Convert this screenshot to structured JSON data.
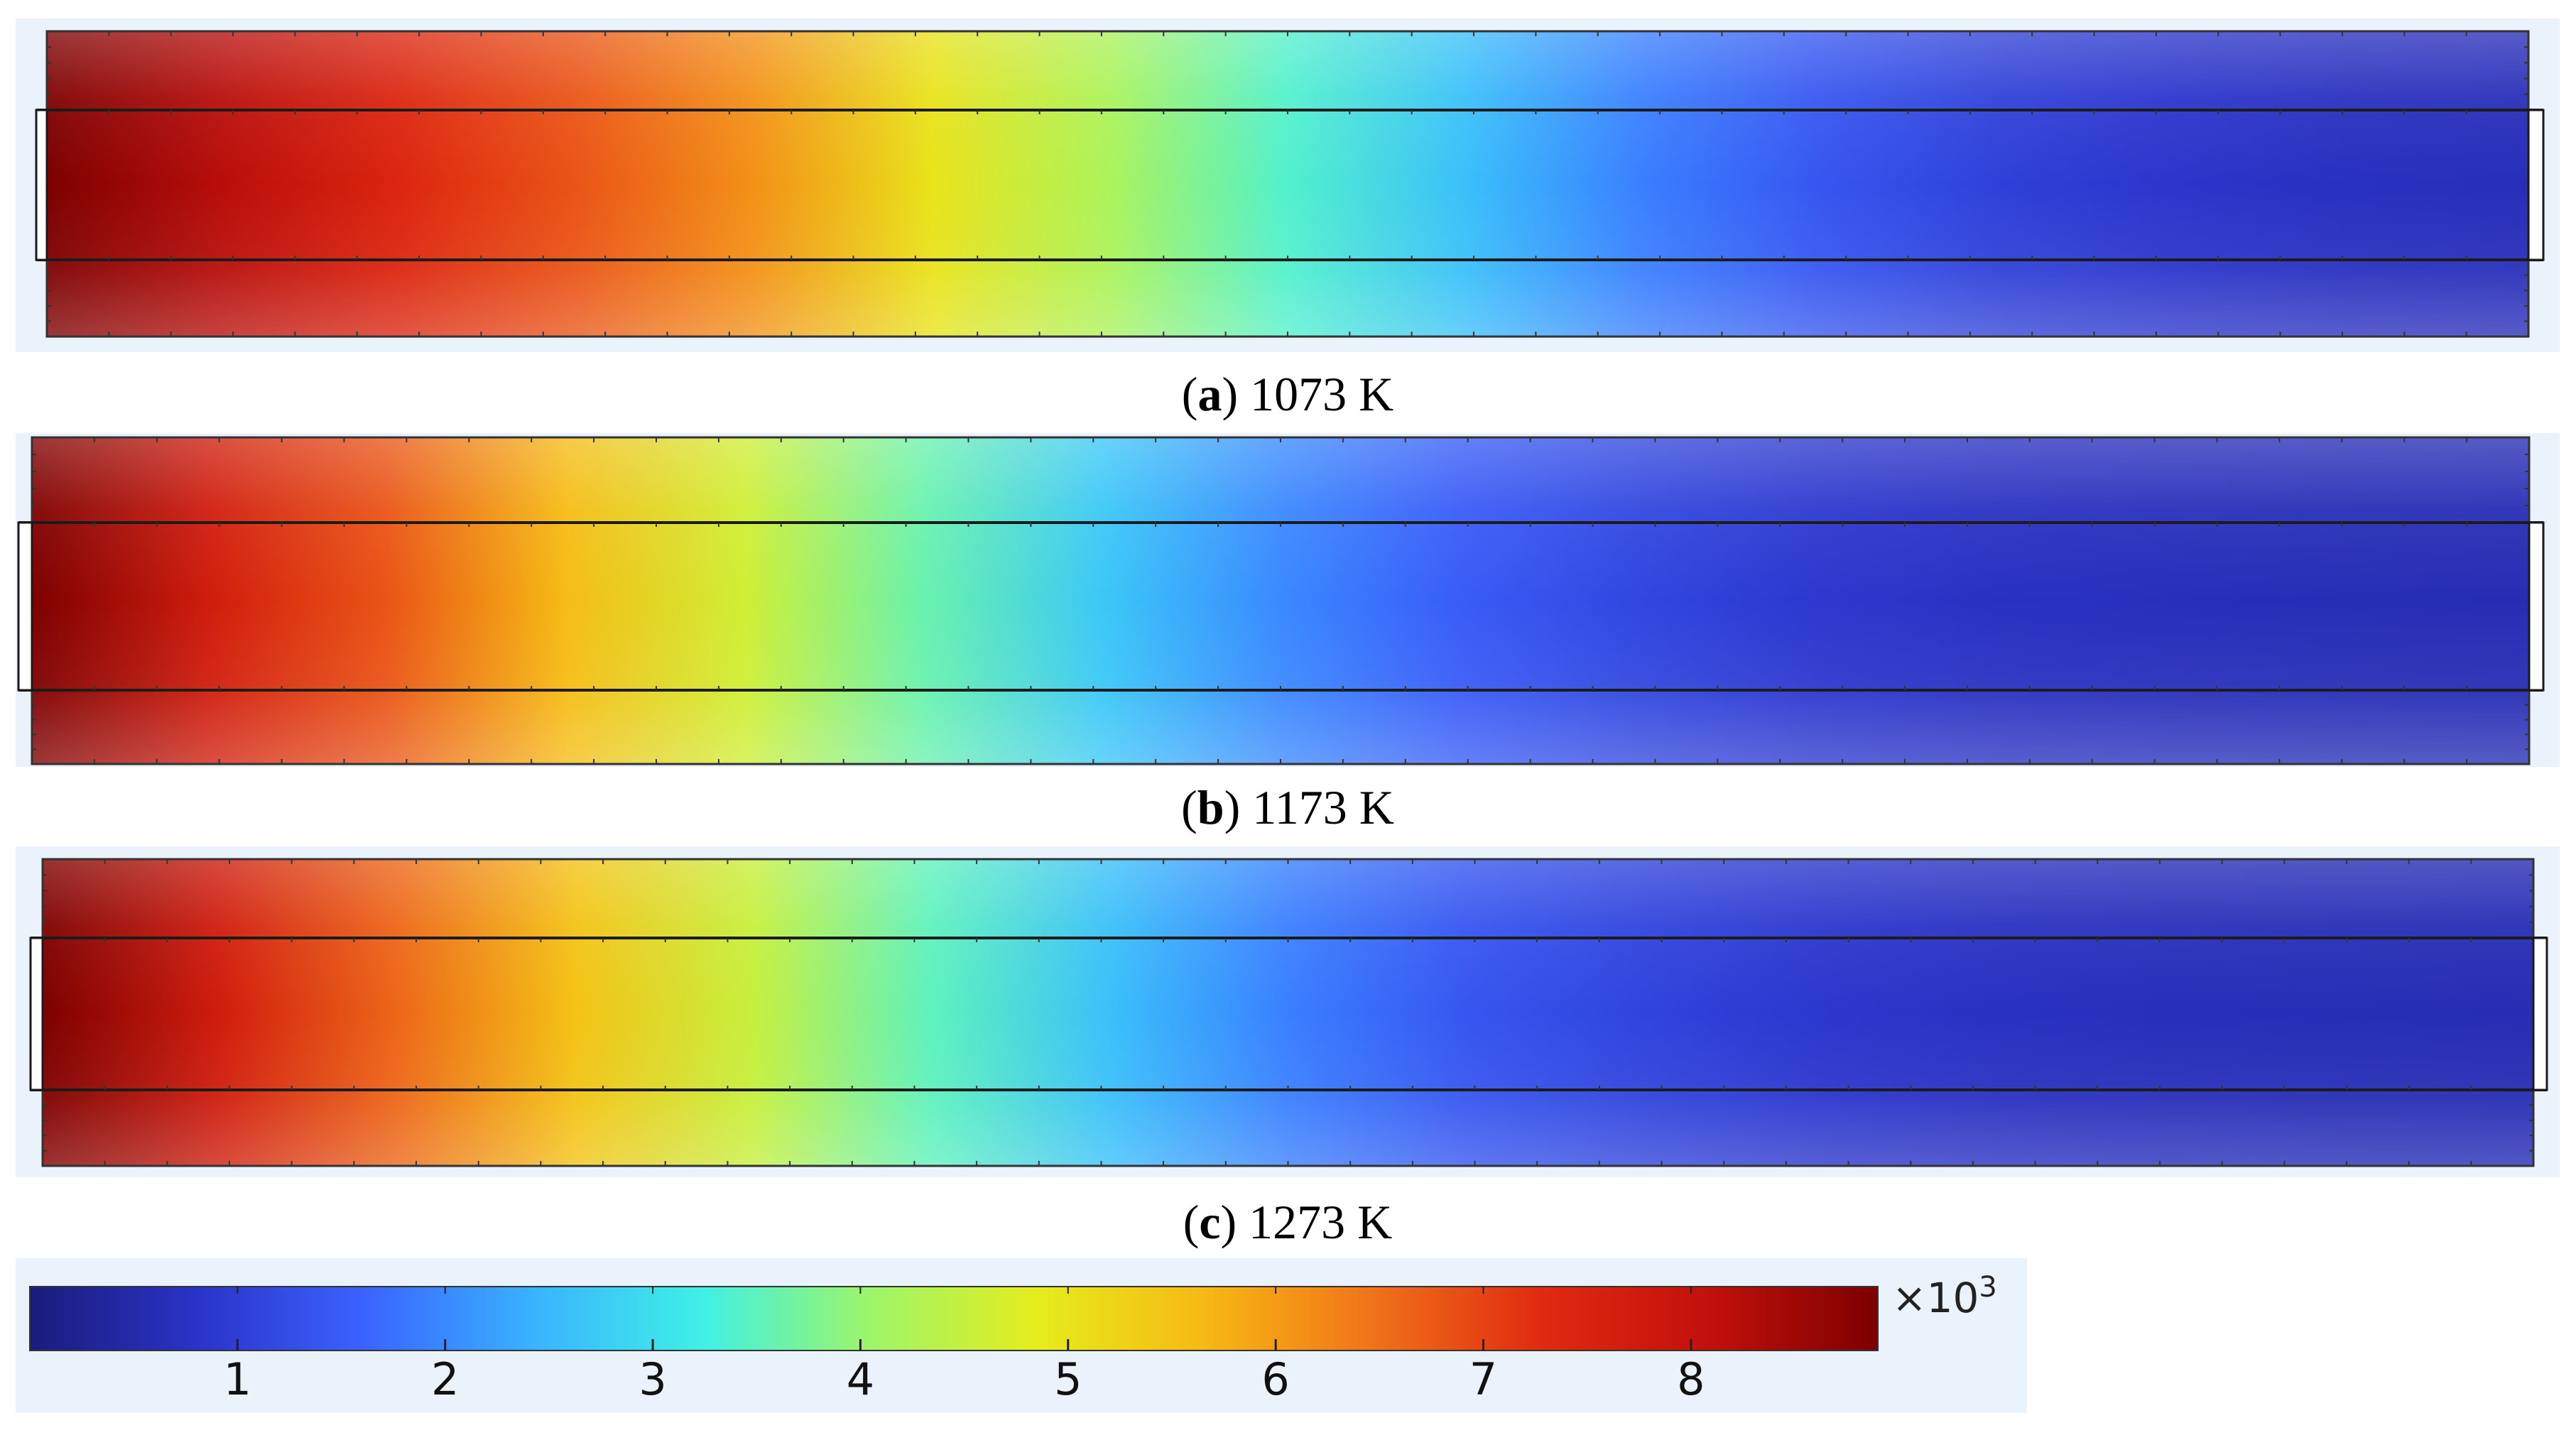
{
  "chart_data": [
    {
      "type": "heatmap",
      "panel": "a",
      "caption_letter": "a",
      "caption_text": ") 1073 K",
      "color_profile": [
        8.9,
        8.2,
        7.4,
        6.8,
        6.1,
        5.0,
        4.2,
        3.4,
        2.6,
        1.9,
        1.4,
        1.05,
        0.85,
        0.72,
        0.65
      ],
      "edge_shading": 0.22
    },
    {
      "type": "heatmap",
      "panel": "b",
      "caption_letter": "b",
      "caption_text": ") 1173 K",
      "color_profile": [
        8.9,
        7.7,
        6.8,
        5.6,
        4.6,
        3.6,
        2.7,
        2.0,
        1.5,
        1.15,
        0.9,
        0.75,
        0.67,
        0.62,
        0.6
      ],
      "edge_shading": 0.22
    },
    {
      "type": "heatmap",
      "panel": "c",
      "caption_letter": "c",
      "caption_text": ") 1273 K",
      "color_profile": [
        8.9,
        7.7,
        6.6,
        5.5,
        4.5,
        3.5,
        2.6,
        1.9,
        1.4,
        1.1,
        0.88,
        0.74,
        0.66,
        0.62,
        0.6
      ],
      "edge_shading": 0.2
    }
  ],
  "colorbar": {
    "multiplier_base": "×10",
    "multiplier_exp": "3",
    "range": [
      0,
      8.9
    ],
    "ticks": [
      "1",
      "2",
      "3",
      "4",
      "5",
      "6",
      "7",
      "8"
    ],
    "colormap_stops": [
      "#1a1c7a",
      "#2a33c8",
      "#3b63ff",
      "#39b3ff",
      "#3ff0e6",
      "#9df56a",
      "#e6ec1c",
      "#f7b813",
      "#f0721a",
      "#e02a10",
      "#c2100b",
      "#7d0000"
    ]
  }
}
